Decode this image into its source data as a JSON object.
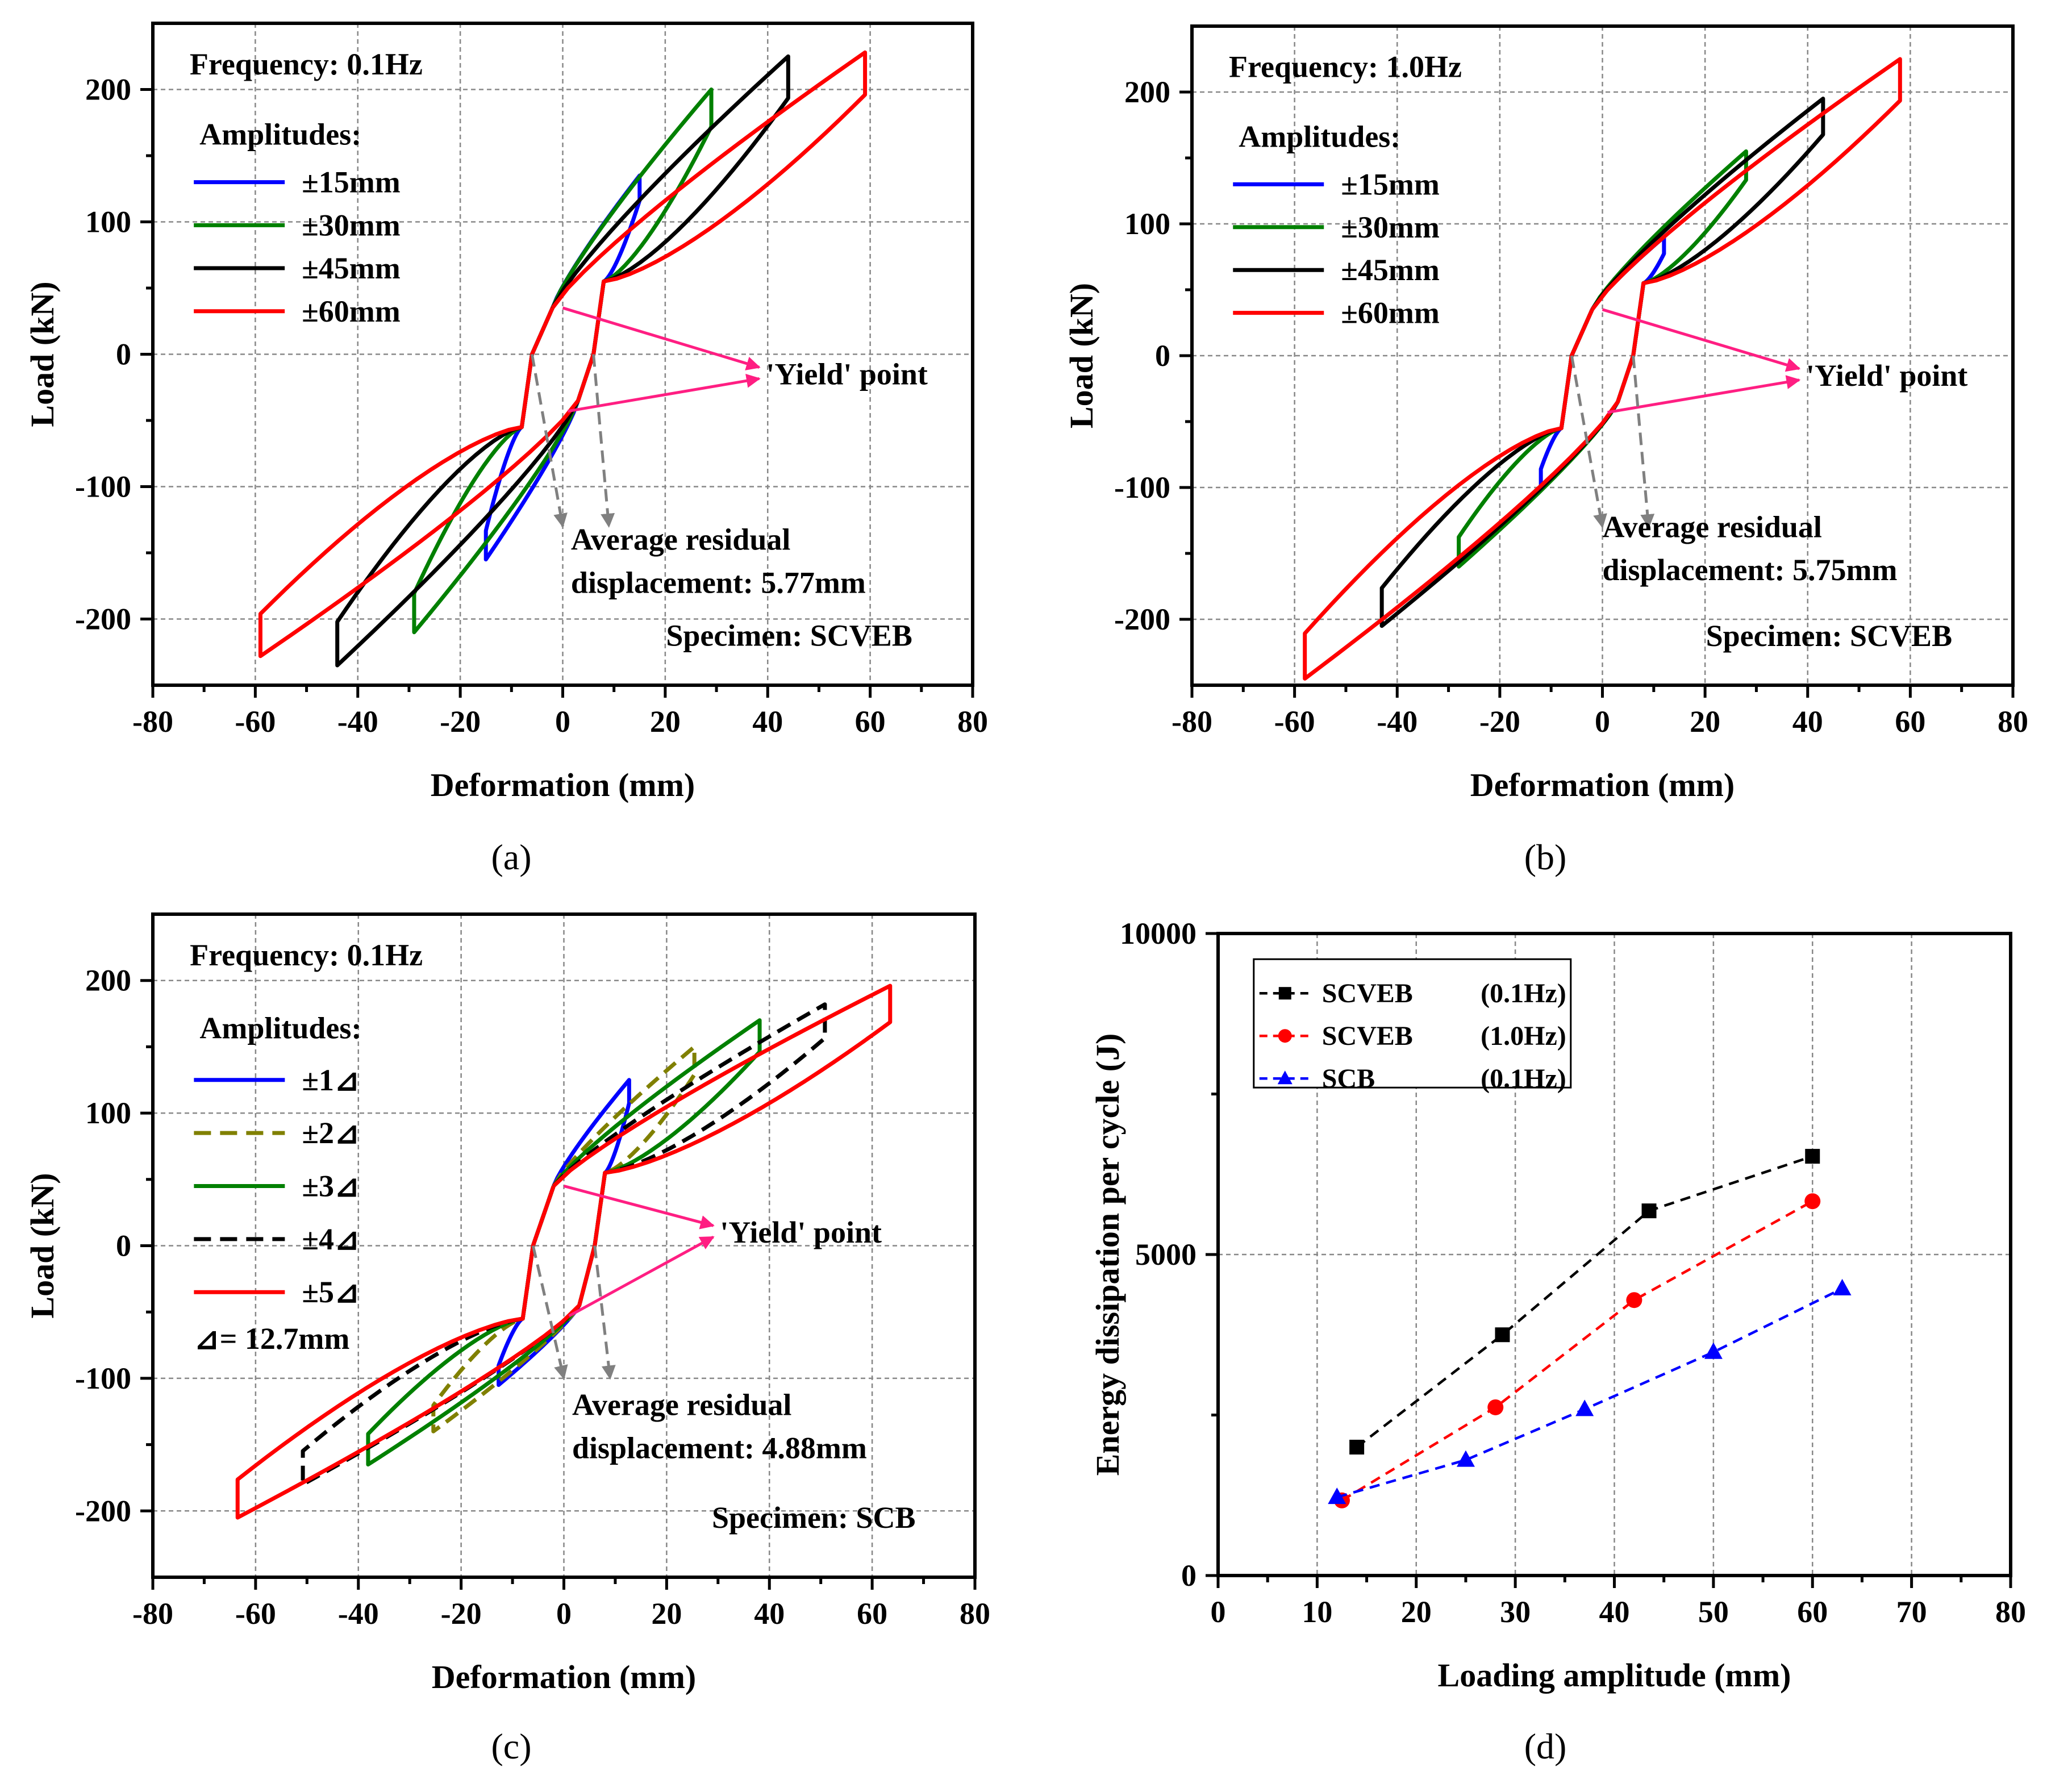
{
  "colors": {
    "blue": "#0000ff",
    "green": "#008000",
    "black": "#000000",
    "red": "#ff0000",
    "olive": "#808000",
    "pink": "#ff1e82",
    "grey": "#808080"
  },
  "chart_data": [
    {
      "id": "a",
      "caption": "(a)",
      "type": "line",
      "xlabel": "Deformation (mm)",
      "ylabel": "Load (kN)",
      "xlim": [
        -80,
        80
      ],
      "ylim": [
        -250,
        250
      ],
      "xticks": [
        "-80",
        "-60",
        "-40",
        "-20",
        "0",
        "20",
        "40",
        "60",
        "80"
      ],
      "yticks": [
        "-200",
        "-100",
        "0",
        "100",
        "200"
      ],
      "frequency": "Frequency: 0.1Hz",
      "legend_title": "Amplitudes:",
      "yield_label": "'Yield' point",
      "residual_line1": "Average residual",
      "residual_line2": "displacement: 5.77mm",
      "specimen": "Specimen: SCVEB",
      "yield_load": 35,
      "series": [
        {
          "name": "±15mm",
          "color": "blue",
          "amplitude": 15,
          "max_load": 135,
          "min_load": -155
        },
        {
          "name": "±30mm",
          "color": "green",
          "amplitude": 29,
          "max_load": 200,
          "min_load": -210
        },
        {
          "name": "±45mm",
          "color": "black",
          "amplitude": 44,
          "max_load": 225,
          "min_load": -235
        },
        {
          "name": "±60mm",
          "color": "red",
          "amplitude": 59,
          "max_load": 228,
          "min_load": -228
        }
      ]
    },
    {
      "id": "b",
      "caption": "(b)",
      "type": "line",
      "xlabel": "Deformation (mm)",
      "ylabel": "Load (kN)",
      "xlim": [
        -80,
        80
      ],
      "ylim": [
        -250,
        250
      ],
      "xticks": [
        "-80",
        "-60",
        "-40",
        "-20",
        "0",
        "20",
        "40",
        "60",
        "80"
      ],
      "yticks": [
        "-200",
        "-100",
        "0",
        "100",
        "200"
      ],
      "frequency": "Frequency: 1.0Hz",
      "legend_title": "Amplitudes:",
      "yield_label": "'Yield' point",
      "residual_line1": "Average residual",
      "residual_line2": "displacement: 5.75mm",
      "specimen": "Specimen: SCVEB",
      "yield_load": 35,
      "series": [
        {
          "name": "±15mm",
          "color": "blue",
          "amplitude": 12,
          "max_load": 90,
          "min_load": -100
        },
        {
          "name": "±30mm",
          "color": "green",
          "amplitude": 28,
          "max_load": 155,
          "min_load": -160
        },
        {
          "name": "±45mm",
          "color": "black",
          "amplitude": 43,
          "max_load": 195,
          "min_load": -205
        },
        {
          "name": "±60mm",
          "color": "red",
          "amplitude": 58,
          "max_load": 225,
          "min_load": -245
        }
      ]
    },
    {
      "id": "c",
      "caption": "(c)",
      "type": "line",
      "xlabel": "Deformation (mm)",
      "ylabel": "Load (kN)",
      "xlim": [
        -80,
        80
      ],
      "ylim": [
        -250,
        250
      ],
      "xticks": [
        "-80",
        "-60",
        "-40",
        "-20",
        "0",
        "20",
        "40",
        "60",
        "80"
      ],
      "yticks": [
        "-200",
        "-100",
        "0",
        "100",
        "200"
      ],
      "frequency": "Frequency: 0.1Hz",
      "legend_title": "Amplitudes:",
      "delta_note": "⊿= 12.7mm",
      "yield_label": "'Yield' point",
      "residual_line1": "Average residual",
      "residual_line2": "displacement: 4.88mm",
      "specimen": "Specimen: SCB",
      "yield_load": 45,
      "series": [
        {
          "name": "±1⊿",
          "color": "blue",
          "dash": false,
          "amplitude": 12.7,
          "max_load": 125,
          "min_load": -105
        },
        {
          "name": "±2⊿",
          "color": "olive",
          "dash": true,
          "amplitude": 25.4,
          "max_load": 150,
          "min_load": -140
        },
        {
          "name": "±3⊿",
          "color": "green",
          "dash": false,
          "amplitude": 38.1,
          "max_load": 170,
          "min_load": -165
        },
        {
          "name": "±4⊿",
          "color": "black",
          "dash": true,
          "amplitude": 50.8,
          "max_load": 182,
          "min_load": -180
        },
        {
          "name": "±5⊿",
          "color": "red",
          "dash": false,
          "amplitude": 63.5,
          "max_load": 196,
          "min_load": -205
        }
      ]
    },
    {
      "id": "d",
      "caption": "(d)",
      "type": "line",
      "xlabel": "Loading amplitude (mm)",
      "ylabel": "Energy dissipation per cycle (J)",
      "xlim": [
        0,
        80
      ],
      "ylim": [
        0,
        10000
      ],
      "xticks": [
        "0",
        "10",
        "20",
        "30",
        "40",
        "50",
        "60",
        "70",
        "80"
      ],
      "yticks": [
        "0",
        "5000",
        "10000"
      ],
      "series": [
        {
          "name": "SCVEB",
          "freq": "(0.1Hz)",
          "color": "black",
          "marker": "square",
          "x": [
            14,
            28.7,
            43.5,
            60
          ],
          "y": [
            2000,
            3750,
            5680,
            6530
          ]
        },
        {
          "name": "SCVEB",
          "freq": "(1.0Hz)",
          "color": "red",
          "marker": "circle",
          "x": [
            12.5,
            28,
            42,
            60
          ],
          "y": [
            1170,
            2620,
            4290,
            5830
          ]
        },
        {
          "name": "SCB",
          "freq": "(0.1Hz)",
          "color": "blue",
          "marker": "triangle",
          "x": [
            12,
            25,
            37,
            50,
            63
          ],
          "y": [
            1220,
            1800,
            2590,
            3480,
            4470
          ]
        }
      ]
    }
  ]
}
